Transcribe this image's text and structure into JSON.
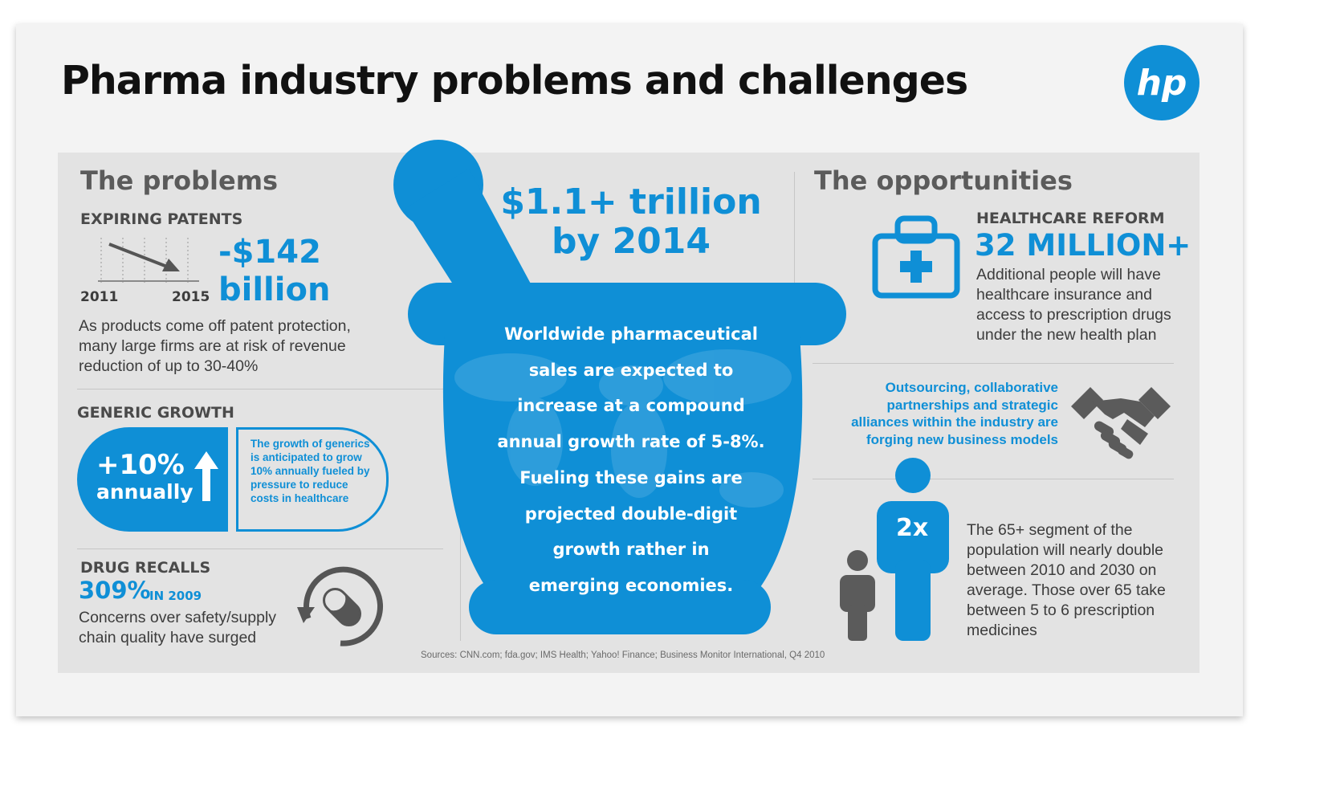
{
  "title": "Pharma industry problems and challenges",
  "logo_text": "hp",
  "colors": {
    "accent": "#0f8fd6",
    "gray": "#5b5b5b",
    "panel": "#e3e3e3"
  },
  "problems": {
    "heading": "The problems",
    "patents": {
      "label": "EXPIRING PATENTS",
      "year_start": "2011",
      "year_end": "2015",
      "value": "-$142",
      "value_unit": "billion",
      "desc": "As products come off patent protection, many large firms are at risk of revenue reduction of up to 30-40%"
    },
    "generic": {
      "label": "GENERIC GROWTH",
      "value": "+10%",
      "value_unit": "annually",
      "desc": "The growth of generics is anticipated to grow 10% annually fueled by pressure to reduce costs in healthcare"
    },
    "recalls": {
      "label": "DRUG RECALLS",
      "value": "309%",
      "value_suffix": "IN 2009",
      "desc": "Concerns over safety/supply chain quality have surged"
    }
  },
  "center": {
    "headline_1": "$1.1+ trillion",
    "headline_2": "by 2014",
    "lines": [
      "Worldwide pharmaceutical",
      "sales are expected to",
      "increase at a compound",
      "annual growth rate of 5-8%.",
      "Fueling these gains are",
      "projected double-digit",
      "growth rather in",
      "emerging economies."
    ]
  },
  "opportunities": {
    "heading": "The opportunities",
    "reform": {
      "label": "HEALTHCARE REFORM",
      "value": "32 MILLION+",
      "desc": "Additional people will have healthcare insurance and access to prescription drugs under the new health plan"
    },
    "outsourcing": {
      "desc": "Outsourcing, collaborative partnerships and strategic alliances within the industry are forging new business models"
    },
    "population": {
      "multiplier": "2x",
      "desc": "The 65+ segment of the population will nearly double between 2010 and 2030 on average. Those over 65 take between 5 to 6 prescription medicines"
    }
  },
  "sources": "Sources: CNN.com; fda.gov; IMS Health; Yahoo! Finance; Business Monitor International, Q4 2010"
}
